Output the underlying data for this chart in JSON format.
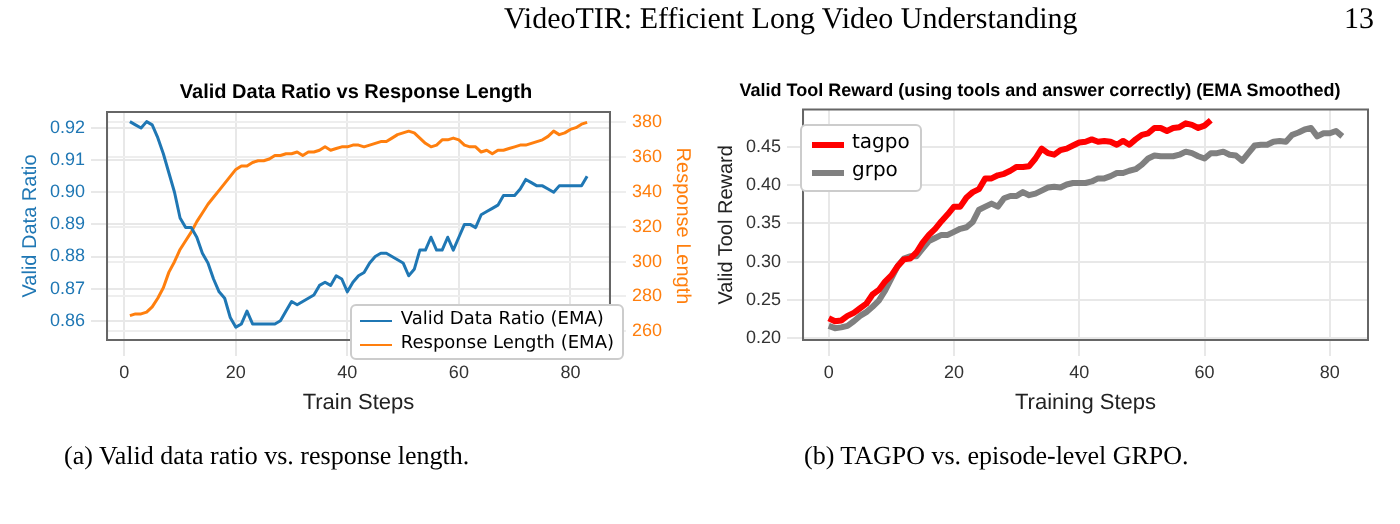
{
  "chart_data": [
    {
      "type": "line",
      "title": "Valid Data Ratio vs Response Length",
      "xlabel": "Train Steps",
      "ylabel": "Valid Data Ratio",
      "y2label": "Response Length",
      "annotations": [
        "VideoTIR: Efficient Long Video Understanding",
        "13",
        "(a) Valid data ratio vs. response length."
      ],
      "x": [
        1,
        2,
        3,
        4,
        5,
        6,
        7,
        8,
        9,
        10,
        11,
        12,
        13,
        14,
        15,
        16,
        17,
        18,
        19,
        20,
        21,
        22,
        23,
        24,
        25,
        26,
        27,
        28,
        29,
        30,
        31,
        32,
        33,
        34,
        35,
        36,
        37,
        38,
        39,
        40,
        41,
        42,
        43,
        44,
        45,
        46,
        47,
        48,
        49,
        50,
        51,
        52,
        53,
        54,
        55,
        56,
        57,
        58,
        59,
        60,
        61,
        62,
        63,
        64,
        65,
        66,
        67,
        68,
        69,
        70,
        71,
        72,
        73,
        74,
        75,
        76,
        77,
        78,
        79,
        80,
        81,
        82,
        83
      ],
      "series": [
        {
          "name": "Valid Data Ratio (EMA)",
          "color": "#1f77b4",
          "values": [
            0.922,
            0.921,
            0.92,
            0.922,
            0.921,
            0.917,
            0.912,
            0.906,
            0.9,
            0.892,
            0.889,
            0.889,
            0.886,
            0.881,
            0.878,
            0.873,
            0.869,
            0.867,
            0.861,
            0.858,
            0.859,
            0.863,
            0.859,
            0.859,
            0.859,
            0.859,
            0.859,
            0.86,
            0.863,
            0.866,
            0.865,
            0.866,
            0.867,
            0.868,
            0.871,
            0.872,
            0.871,
            0.874,
            0.873,
            0.869,
            0.872,
            0.874,
            0.875,
            0.878,
            0.88,
            0.881,
            0.881,
            0.88,
            0.879,
            0.878,
            0.874,
            0.876,
            0.882,
            0.882,
            0.886,
            0.882,
            0.882,
            0.886,
            0.882,
            0.886,
            0.89,
            0.89,
            0.889,
            0.893,
            0.894,
            0.895,
            0.896,
            0.899,
            0.899,
            0.899,
            0.901,
            0.904,
            0.903,
            0.902,
            0.902,
            0.901,
            0.9,
            0.902,
            0.902,
            0.902,
            0.902,
            0.902,
            0.905
          ]
        },
        {
          "name": "Response Length (EMA)",
          "color": "#ff7f0e",
          "axis": "y2",
          "values": [
            269,
            270,
            270,
            271,
            274,
            279,
            285,
            294,
            300,
            307,
            312,
            317,
            323,
            328,
            333,
            337,
            341,
            345,
            349,
            353,
            355,
            355,
            357,
            358,
            358,
            359,
            361,
            361,
            362,
            362,
            363,
            361,
            363,
            363,
            364,
            366,
            364,
            365,
            366,
            366,
            367,
            367,
            366,
            367,
            368,
            369,
            369,
            371,
            373,
            374,
            375,
            374,
            371,
            368,
            366,
            367,
            370,
            370,
            371,
            370,
            367,
            366,
            366,
            363,
            364,
            362,
            364,
            364,
            365,
            366,
            367,
            367,
            368,
            369,
            370,
            372,
            375,
            373,
            374,
            376,
            377,
            379,
            380
          ]
        }
      ],
      "xlim": [
        -3.1,
        87.1
      ],
      "xticks": [
        0,
        20,
        40,
        60,
        80
      ],
      "ylim": [
        0.854,
        0.925
      ],
      "yticks": [
        0.86,
        0.87,
        0.88,
        0.89,
        {
          "value": 0.9,
          "label": "0.90"
        },
        0.91,
        0.92
      ],
      "y2lim": [
        255,
        386
      ],
      "y2ticks": [
        260,
        280,
        300,
        320,
        340,
        360,
        380
      ],
      "grid": true,
      "legend": "bottom right"
    },
    {
      "type": "line",
      "title": "Valid Tool Reward (using tools and answer correctly) (EMA Smoothed)",
      "xlabel": "Training Steps",
      "ylabel": "Valid Tool Reward",
      "annotations": [
        "(b) TAGPO vs. episode-level GRPO."
      ],
      "series": [
        {
          "name": "tagpo",
          "color": "#ff0000",
          "x": [
            0,
            1,
            2,
            3,
            4,
            5,
            6,
            7,
            8,
            9,
            10,
            11,
            12,
            13,
            14,
            15,
            16,
            17,
            18,
            19,
            20,
            21,
            22,
            23,
            24,
            25,
            26,
            27,
            28,
            29,
            30,
            31,
            32,
            33,
            34,
            35,
            36,
            37,
            38,
            39,
            40,
            41,
            42,
            43,
            44,
            45,
            46,
            47,
            48,
            49,
            50,
            51,
            52,
            53,
            54,
            55,
            56,
            57,
            58,
            59,
            60,
            61
          ],
          "values": [
            0.226,
            0.222,
            0.223,
            0.229,
            0.233,
            0.239,
            0.245,
            0.257,
            0.263,
            0.274,
            0.282,
            0.294,
            0.303,
            0.304,
            0.312,
            0.325,
            0.335,
            0.343,
            0.353,
            0.362,
            0.372,
            0.372,
            0.384,
            0.391,
            0.395,
            0.409,
            0.409,
            0.413,
            0.415,
            0.419,
            0.424,
            0.424,
            0.425,
            0.435,
            0.448,
            0.442,
            0.44,
            0.446,
            0.448,
            0.452,
            0.456,
            0.457,
            0.46,
            0.457,
            0.458,
            0.457,
            0.453,
            0.458,
            0.453,
            0.46,
            0.466,
            0.468,
            0.475,
            0.475,
            0.471,
            0.475,
            0.476,
            0.481,
            0.479,
            0.475,
            0.478,
            0.485
          ]
        },
        {
          "name": "grpo",
          "color": "#808080",
          "x": [
            0,
            1,
            2,
            3,
            4,
            5,
            6,
            7,
            8,
            9,
            10,
            11,
            12,
            13,
            14,
            15,
            16,
            17,
            18,
            19,
            20,
            21,
            22,
            23,
            24,
            25,
            26,
            27,
            28,
            29,
            30,
            31,
            32,
            33,
            34,
            35,
            36,
            37,
            38,
            39,
            40,
            41,
            42,
            43,
            44,
            45,
            46,
            47,
            48,
            49,
            50,
            51,
            52,
            53,
            54,
            55,
            56,
            57,
            58,
            59,
            60,
            61,
            62,
            63,
            64,
            65,
            66,
            67,
            68,
            69,
            70,
            71,
            72,
            73,
            74,
            75,
            76,
            77,
            78,
            79,
            80,
            81,
            82
          ],
          "values": [
            0.216,
            0.213,
            0.214,
            0.216,
            0.222,
            0.229,
            0.234,
            0.241,
            0.249,
            0.262,
            0.278,
            0.294,
            0.304,
            0.307,
            0.307,
            0.317,
            0.327,
            0.331,
            0.335,
            0.335,
            0.339,
            0.343,
            0.345,
            0.352,
            0.368,
            0.372,
            0.376,
            0.372,
            0.383,
            0.386,
            0.386,
            0.391,
            0.387,
            0.389,
            0.393,
            0.397,
            0.398,
            0.397,
            0.401,
            0.403,
            0.403,
            0.403,
            0.405,
            0.409,
            0.409,
            0.412,
            0.416,
            0.416,
            0.419,
            0.421,
            0.427,
            0.435,
            0.439,
            0.438,
            0.438,
            0.438,
            0.44,
            0.444,
            0.442,
            0.438,
            0.435,
            0.442,
            0.442,
            0.444,
            0.44,
            0.439,
            0.432,
            0.442,
            0.452,
            0.453,
            0.453,
            0.457,
            0.458,
            0.457,
            0.466,
            0.469,
            0.473,
            0.475,
            0.464,
            0.468,
            0.468,
            0.471,
            0.464
          ]
        }
      ],
      "xlim": [
        -4.1,
        86.1
      ],
      "xticks": [
        0,
        20,
        40,
        60,
        80
      ],
      "ylim": [
        0.1975,
        0.499
      ],
      "yticks": [
        {
          "value": 0.2,
          "label": "0.20"
        },
        0.25,
        {
          "value": 0.3,
          "label": "0.30"
        },
        0.35,
        {
          "value": 0.4,
          "label": "0.40"
        },
        0.45
      ],
      "grid": true,
      "legend": "top left"
    }
  ]
}
